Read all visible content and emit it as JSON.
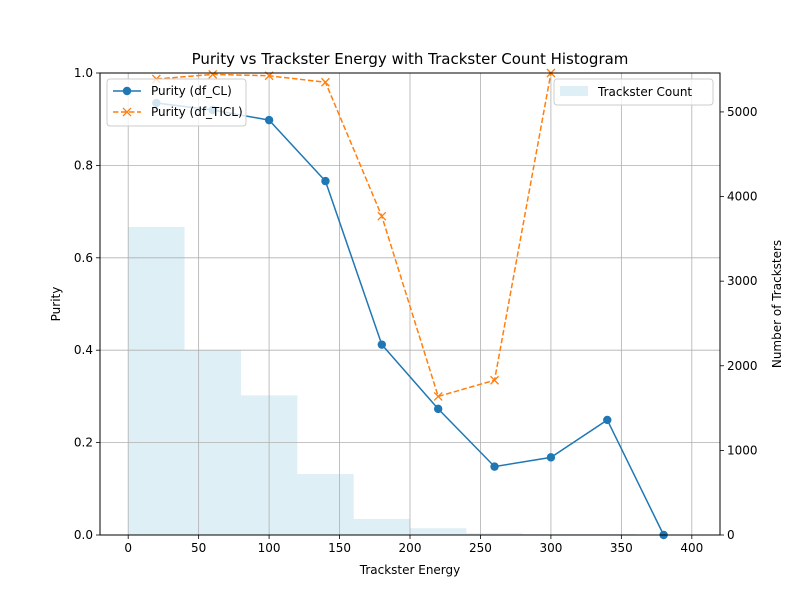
{
  "chart_data": {
    "type": "line",
    "title": "Purity vs Trackster Energy with Trackster Count Histogram",
    "xlabel": "Trackster Energy",
    "ylabel": "Purity",
    "y2label": "Number of Tracksters",
    "xlim": [
      -20,
      420
    ],
    "ylim": [
      0,
      1.0
    ],
    "y2lim": [
      0,
      5460
    ],
    "xticks": [
      0,
      50,
      100,
      150,
      200,
      250,
      300,
      350,
      400
    ],
    "yticks": [
      0.0,
      0.2,
      0.4,
      0.6,
      0.8,
      1.0
    ],
    "y2ticks": [
      0,
      1000,
      2000,
      3000,
      4000,
      5000
    ],
    "grid": true,
    "series": [
      {
        "name": "Purity (df_CL)",
        "style": "solid",
        "marker": "circle",
        "color": "#1f77b4",
        "x": [
          20,
          60,
          100,
          140,
          180,
          220,
          260,
          300,
          340,
          380
        ],
        "values": [
          0.935,
          0.92,
          0.898,
          0.766,
          0.412,
          0.273,
          0.148,
          0.168,
          0.249,
          0.0
        ]
      },
      {
        "name": "Purity (df_TICL)",
        "style": "dashed",
        "marker": "x",
        "color": "#ff7f0e",
        "x": [
          20,
          60,
          100,
          140,
          180,
          220,
          260,
          300
        ],
        "values": [
          0.987,
          0.997,
          0.994,
          0.98,
          0.69,
          0.3,
          0.335,
          1.0
        ]
      }
    ],
    "histogram": {
      "name": "Trackster Count",
      "color": "#add8e6",
      "opacity": 0.4,
      "bin_edges": [
        0,
        40,
        80,
        120,
        160,
        200,
        240,
        280,
        320,
        360,
        400
      ],
      "counts": [
        3640,
        2180,
        1650,
        720,
        190,
        80,
        20,
        10,
        10,
        5
      ]
    },
    "legend_left": [
      "Purity (df_CL)",
      "Purity (df_TICL)"
    ],
    "legend_right": [
      "Trackster Count"
    ],
    "legend_left_position": "upper-left",
    "legend_right_position": "upper-right"
  }
}
